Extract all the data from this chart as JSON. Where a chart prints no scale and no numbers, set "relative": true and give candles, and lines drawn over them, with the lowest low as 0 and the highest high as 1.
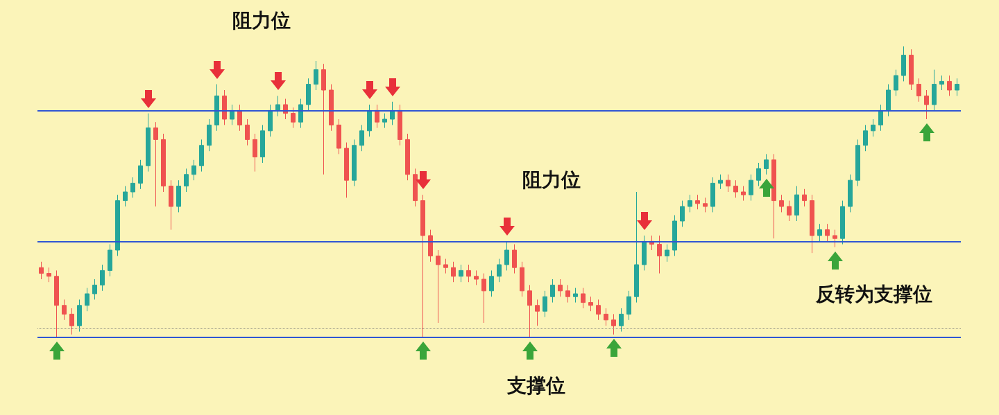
{
  "chart_data": {
    "type": "candlestick",
    "relative": true,
    "categories": [
      null,
      null,
      null,
      null,
      null,
      null,
      null,
      null,
      null,
      null,
      null,
      null,
      null,
      null,
      null,
      null,
      null,
      null,
      null,
      null,
      null,
      null,
      null,
      null,
      null,
      null,
      null,
      null,
      null,
      null,
      null,
      null,
      null,
      null,
      null,
      null,
      null,
      null,
      null,
      null,
      null,
      null,
      null,
      null,
      null,
      null,
      null,
      null,
      null,
      null,
      null,
      null,
      null,
      null,
      null,
      null,
      null,
      null,
      null,
      null,
      null,
      null,
      null,
      null,
      null,
      null,
      null,
      null,
      null,
      null,
      null,
      null,
      null,
      null,
      null,
      null,
      null,
      null,
      null,
      null,
      null,
      null,
      null,
      null,
      null,
      null,
      null,
      null,
      null,
      null,
      null,
      null,
      null,
      null,
      null,
      null,
      null,
      null,
      null,
      null,
      null,
      null,
      null,
      null,
      null,
      null,
      null,
      null,
      null,
      null,
      null,
      null,
      null,
      null,
      null,
      null,
      null,
      null,
      null,
      null,
      null
    ],
    "ohlc": [
      [
        0.24,
        0.26,
        0.2,
        0.22
      ],
      [
        0.22,
        0.24,
        0.19,
        0.21
      ],
      [
        0.21,
        0.23,
        0.0,
        0.11
      ],
      [
        0.11,
        0.13,
        0.06,
        0.08
      ],
      [
        0.08,
        0.1,
        0.01,
        0.04
      ],
      [
        0.04,
        0.13,
        0.02,
        0.11
      ],
      [
        0.11,
        0.17,
        0.09,
        0.15
      ],
      [
        0.15,
        0.2,
        0.13,
        0.18
      ],
      [
        0.18,
        0.25,
        0.16,
        0.23
      ],
      [
        0.23,
        0.32,
        0.21,
        0.3
      ],
      [
        0.3,
        0.49,
        0.28,
        0.47
      ],
      [
        0.47,
        0.52,
        0.45,
        0.5
      ],
      [
        0.5,
        0.55,
        0.48,
        0.53
      ],
      [
        0.53,
        0.61,
        0.51,
        0.59
      ],
      [
        0.59,
        0.77,
        0.57,
        0.72
      ],
      [
        0.72,
        0.74,
        0.45,
        0.68
      ],
      [
        0.68,
        0.7,
        0.5,
        0.52
      ],
      [
        0.52,
        0.54,
        0.37,
        0.45
      ],
      [
        0.45,
        0.54,
        0.43,
        0.52
      ],
      [
        0.52,
        0.58,
        0.5,
        0.56
      ],
      [
        0.56,
        0.61,
        0.54,
        0.59
      ],
      [
        0.59,
        0.68,
        0.57,
        0.66
      ],
      [
        0.66,
        0.75,
        0.64,
        0.73
      ],
      [
        0.73,
        0.87,
        0.71,
        0.83
      ],
      [
        0.83,
        0.85,
        0.73,
        0.75
      ],
      [
        0.75,
        0.8,
        0.73,
        0.78
      ],
      [
        0.78,
        0.8,
        0.71,
        0.73
      ],
      [
        0.73,
        0.75,
        0.66,
        0.68
      ],
      [
        0.68,
        0.7,
        0.57,
        0.62
      ],
      [
        0.62,
        0.73,
        0.6,
        0.71
      ],
      [
        0.71,
        0.8,
        0.69,
        0.78
      ],
      [
        0.78,
        0.83,
        0.76,
        0.8
      ],
      [
        0.8,
        0.82,
        0.75,
        0.77
      ],
      [
        0.77,
        0.79,
        0.72,
        0.74
      ],
      [
        0.74,
        0.82,
        0.72,
        0.8
      ],
      [
        0.8,
        0.89,
        0.78,
        0.87
      ],
      [
        0.87,
        0.95,
        0.85,
        0.92
      ],
      [
        0.92,
        0.94,
        0.56,
        0.85
      ],
      [
        0.85,
        0.87,
        0.71,
        0.73
      ],
      [
        0.73,
        0.75,
        0.63,
        0.65
      ],
      [
        0.65,
        0.67,
        0.48,
        0.54
      ],
      [
        0.54,
        0.68,
        0.52,
        0.66
      ],
      [
        0.66,
        0.73,
        0.64,
        0.71
      ],
      [
        0.71,
        0.8,
        0.69,
        0.78
      ],
      [
        0.78,
        0.8,
        0.72,
        0.74
      ],
      [
        0.74,
        0.77,
        0.72,
        0.75
      ],
      [
        0.75,
        0.81,
        0.73,
        0.78
      ],
      [
        0.78,
        0.8,
        0.66,
        0.68
      ],
      [
        0.68,
        0.7,
        0.54,
        0.56
      ],
      [
        0.56,
        0.58,
        0.45,
        0.47
      ],
      [
        0.47,
        0.49,
        0.0,
        0.35
      ],
      [
        0.35,
        0.37,
        0.26,
        0.28
      ],
      [
        0.28,
        0.3,
        0.05,
        0.25
      ],
      [
        0.25,
        0.27,
        0.22,
        0.24
      ],
      [
        0.24,
        0.26,
        0.19,
        0.21
      ],
      [
        0.21,
        0.25,
        0.19,
        0.23
      ],
      [
        0.23,
        0.25,
        0.19,
        0.21
      ],
      [
        0.21,
        0.23,
        0.18,
        0.2
      ],
      [
        0.2,
        0.22,
        0.05,
        0.16
      ],
      [
        0.16,
        0.23,
        0.14,
        0.21
      ],
      [
        0.21,
        0.27,
        0.19,
        0.25
      ],
      [
        0.25,
        0.33,
        0.23,
        0.3
      ],
      [
        0.3,
        0.32,
        0.22,
        0.24
      ],
      [
        0.24,
        0.26,
        0.14,
        0.16
      ],
      [
        0.16,
        0.18,
        0.0,
        0.11
      ],
      [
        0.11,
        0.13,
        0.04,
        0.09
      ],
      [
        0.09,
        0.16,
        0.07,
        0.14
      ],
      [
        0.14,
        0.2,
        0.12,
        0.18
      ],
      [
        0.18,
        0.2,
        0.14,
        0.16
      ],
      [
        0.16,
        0.18,
        0.12,
        0.14
      ],
      [
        0.14,
        0.17,
        0.12,
        0.15
      ],
      [
        0.15,
        0.17,
        0.1,
        0.12
      ],
      [
        0.12,
        0.14,
        0.09,
        0.11
      ],
      [
        0.11,
        0.13,
        0.06,
        0.08
      ],
      [
        0.08,
        0.1,
        0.04,
        0.06
      ],
      [
        0.06,
        0.08,
        0.01,
        0.04
      ],
      [
        0.04,
        0.1,
        0.02,
        0.08
      ],
      [
        0.08,
        0.16,
        0.06,
        0.14
      ],
      [
        0.14,
        0.5,
        0.12,
        0.25
      ],
      [
        0.25,
        0.35,
        0.23,
        0.33
      ],
      [
        0.33,
        0.35,
        0.3,
        0.32
      ],
      [
        0.32,
        0.35,
        0.22,
        0.28
      ],
      [
        0.28,
        0.32,
        0.26,
        0.3
      ],
      [
        0.3,
        0.42,
        0.28,
        0.4
      ],
      [
        0.4,
        0.47,
        0.38,
        0.45
      ],
      [
        0.45,
        0.49,
        0.43,
        0.47
      ],
      [
        0.47,
        0.49,
        0.44,
        0.46
      ],
      [
        0.46,
        0.48,
        0.43,
        0.45
      ],
      [
        0.45,
        0.55,
        0.43,
        0.53
      ],
      [
        0.53,
        0.56,
        0.51,
        0.54
      ],
      [
        0.54,
        0.56,
        0.5,
        0.52
      ],
      [
        0.52,
        0.54,
        0.48,
        0.5
      ],
      [
        0.5,
        0.52,
        0.47,
        0.49
      ],
      [
        0.49,
        0.56,
        0.47,
        0.54
      ],
      [
        0.54,
        0.6,
        0.52,
        0.58
      ],
      [
        0.58,
        0.63,
        0.56,
        0.61
      ],
      [
        0.61,
        0.63,
        0.34,
        0.47
      ],
      [
        0.47,
        0.49,
        0.43,
        0.45
      ],
      [
        0.45,
        0.47,
        0.4,
        0.42
      ],
      [
        0.42,
        0.52,
        0.4,
        0.49
      ],
      [
        0.49,
        0.51,
        0.45,
        0.47
      ],
      [
        0.47,
        0.49,
        0.29,
        0.35
      ],
      [
        0.35,
        0.39,
        0.33,
        0.37
      ],
      [
        0.37,
        0.39,
        0.33,
        0.35
      ],
      [
        0.35,
        0.37,
        0.31,
        0.34
      ],
      [
        0.34,
        0.47,
        0.32,
        0.45
      ],
      [
        0.45,
        0.56,
        0.43,
        0.54
      ],
      [
        0.54,
        0.68,
        0.52,
        0.66
      ],
      [
        0.66,
        0.73,
        0.64,
        0.71
      ],
      [
        0.71,
        0.75,
        0.69,
        0.73
      ],
      [
        0.73,
        0.8,
        0.71,
        0.78
      ],
      [
        0.78,
        0.87,
        0.76,
        0.85
      ],
      [
        0.85,
        0.92,
        0.83,
        0.9
      ],
      [
        0.9,
        1.0,
        0.88,
        0.97
      ],
      [
        0.97,
        0.99,
        0.85,
        0.87
      ],
      [
        0.87,
        0.89,
        0.81,
        0.83
      ],
      [
        0.83,
        0.85,
        0.75,
        0.8
      ],
      [
        0.8,
        0.92,
        0.78,
        0.87
      ],
      [
        0.87,
        0.9,
        0.85,
        0.88
      ],
      [
        0.88,
        0.9,
        0.83,
        0.85
      ],
      [
        0.85,
        0.89,
        0.83,
        0.87
      ]
    ],
    "ref_lines": [
      {
        "axis": "y",
        "value": 0.78,
        "color": "#2f55d4"
      },
      {
        "axis": "y",
        "value": 0.33,
        "color": "#2f55d4"
      },
      {
        "axis": "y",
        "value": 0,
        "color": "#2f55d4"
      },
      {
        "axis": "y",
        "value": 0.03,
        "color": "#9a9a8a",
        "line_style": "dotted"
      }
    ],
    "annotations": [
      "阻力位",
      {
        "text": "阻力位",
        "y": 0.33
      },
      {
        "text": "支撑位",
        "y": 0
      },
      {
        "text": "反转为支撑位",
        "y": 0.33
      }
    ]
  }
}
